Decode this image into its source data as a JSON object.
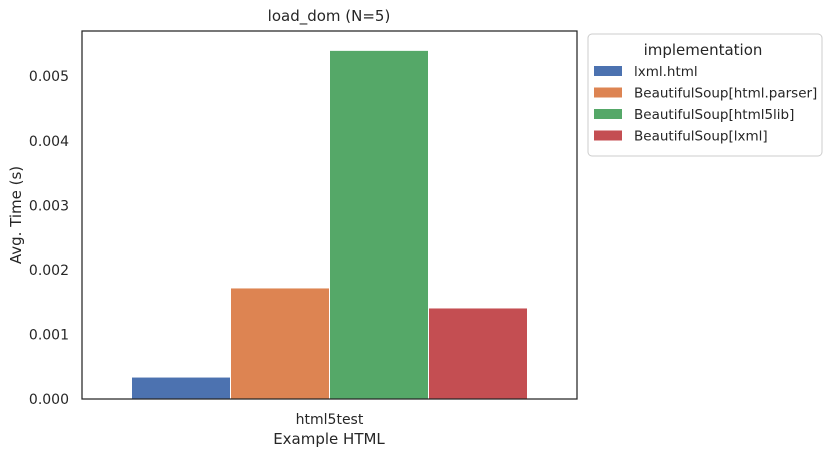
{
  "chart_data": {
    "type": "bar",
    "title": "load_dom (N=5)",
    "xlabel": "Example HTML",
    "ylabel": "Avg. Time (s)",
    "categories": [
      "html5test"
    ],
    "ylim": [
      0,
      0.0057
    ],
    "yticks": [
      "0.000",
      "0.001",
      "0.002",
      "0.003",
      "0.004",
      "0.005"
    ],
    "grid": false,
    "legend": {
      "title": "implementation",
      "placement": "outside-top-right"
    },
    "series": [
      {
        "name": "lxml.html",
        "values": [
          0.00034
        ],
        "color": "#4c72b0"
      },
      {
        "name": "BeautifulSoup[html.parser]",
        "values": [
          0.00172
        ],
        "color": "#dd8452"
      },
      {
        "name": "BeautifulSoup[html5lib]",
        "values": [
          0.0054
        ],
        "color": "#55a868"
      },
      {
        "name": "BeautifulSoup[lxml]",
        "values": [
          0.00141
        ],
        "color": "#c44e52"
      }
    ]
  }
}
